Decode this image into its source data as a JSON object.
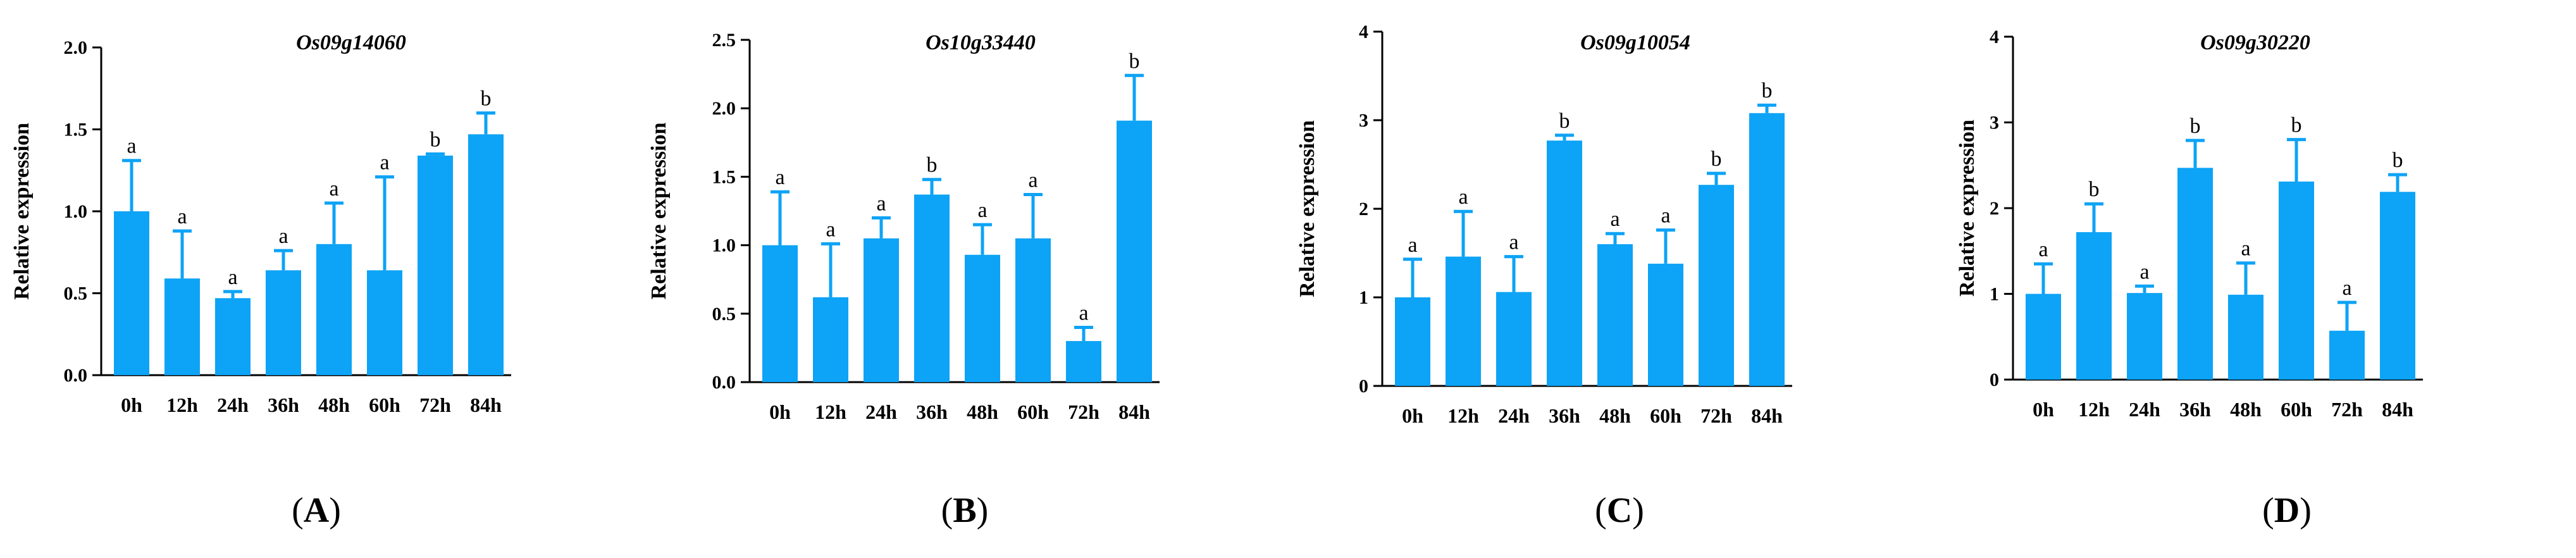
{
  "figure": {
    "bar_color": "#0da3f6",
    "axis_color": "#000000"
  },
  "chart_data": [
    {
      "type": "bar",
      "panel": "A",
      "title": "Os09g14060",
      "xlabel": "",
      "ylabel": "Relative expression",
      "categories": [
        "0h",
        "12h",
        "24h",
        "36h",
        "48h",
        "60h",
        "72h",
        "84h"
      ],
      "values": [
        1.0,
        0.59,
        0.47,
        0.64,
        0.8,
        0.64,
        1.34,
        1.47
      ],
      "errors": [
        0.31,
        0.29,
        0.04,
        0.12,
        0.25,
        0.57,
        0.01,
        0.13
      ],
      "significance": [
        "a",
        "a",
        "a",
        "a",
        "a",
        "a",
        "b",
        "b"
      ],
      "ylim": [
        0,
        2.0
      ],
      "yticks": [
        0,
        0.5,
        1.0,
        1.5,
        2.0
      ],
      "ytick_labels": [
        "0.0",
        "0.5",
        "1.0",
        "1.5",
        "2.0"
      ]
    },
    {
      "type": "bar",
      "panel": "B",
      "title": "Os10g33440",
      "xlabel": "",
      "ylabel": "Relative expression",
      "categories": [
        "0h",
        "12h",
        "24h",
        "36h",
        "48h",
        "60h",
        "72h",
        "84h"
      ],
      "values": [
        1.0,
        0.62,
        1.05,
        1.37,
        0.93,
        1.05,
        0.3,
        1.91
      ],
      "errors": [
        0.39,
        0.39,
        0.15,
        0.11,
        0.22,
        0.32,
        0.1,
        0.33
      ],
      "significance": [
        "a",
        "a",
        "a",
        "b",
        "a",
        "a",
        "a",
        "b"
      ],
      "ylim": [
        0,
        2.5
      ],
      "yticks": [
        0,
        0.5,
        1.0,
        1.5,
        2.0,
        2.5
      ],
      "ytick_labels": [
        "0.0",
        "0.5",
        "1.0",
        "1.5",
        "2.0",
        "2.5"
      ]
    },
    {
      "type": "bar",
      "panel": "C",
      "title": "Os09g10054",
      "xlabel": "",
      "ylabel": "Relative expression",
      "categories": [
        "0h",
        "12h",
        "24h",
        "36h",
        "48h",
        "60h",
        "72h",
        "84h"
      ],
      "values": [
        1.0,
        1.46,
        1.06,
        2.77,
        1.6,
        1.38,
        2.27,
        3.08
      ],
      "errors": [
        0.43,
        0.51,
        0.4,
        0.06,
        0.12,
        0.38,
        0.13,
        0.09
      ],
      "significance": [
        "a",
        "a",
        "a",
        "b",
        "a",
        "a",
        "b",
        "b"
      ],
      "ylim": [
        0,
        4
      ],
      "yticks": [
        0,
        1,
        2,
        3,
        4
      ],
      "ytick_labels": [
        "0",
        "1",
        "2",
        "3",
        "4"
      ]
    },
    {
      "type": "bar",
      "panel": "D",
      "title": "Os09g30220",
      "xlabel": "",
      "ylabel": "Relative expression",
      "categories": [
        "0h",
        "12h",
        "24h",
        "36h",
        "48h",
        "60h",
        "72h",
        "84h"
      ],
      "values": [
        1.0,
        1.72,
        1.01,
        2.47,
        0.99,
        2.31,
        0.57,
        2.19
      ],
      "errors": [
        0.35,
        0.33,
        0.08,
        0.32,
        0.37,
        0.49,
        0.33,
        0.2
      ],
      "significance": [
        "a",
        "b",
        "a",
        "b",
        "a",
        "b",
        "a",
        "b"
      ],
      "ylim": [
        0,
        4
      ],
      "yticks": [
        0,
        1,
        2,
        3,
        4
      ],
      "ytick_labels": [
        "0",
        "1",
        "2",
        "3",
        "4"
      ]
    }
  ]
}
